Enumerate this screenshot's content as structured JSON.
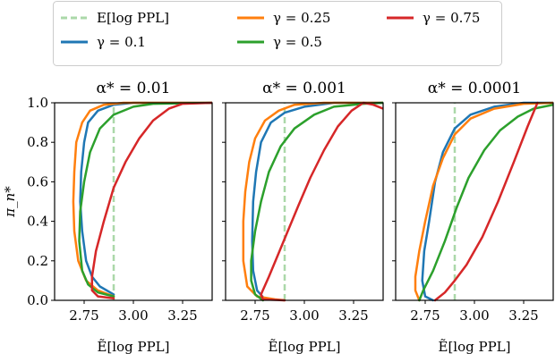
{
  "chart_data": {
    "type": "line",
    "legend": {
      "placement": "top",
      "entries": [
        {
          "key": "ref",
          "label": "E[log PPL]",
          "color": "#abd8a9",
          "dashed": true
        },
        {
          "key": "g025",
          "label": "γ = 0.25",
          "color": "#ff7f0e"
        },
        {
          "key": "g075",
          "label": "γ = 0.75",
          "color": "#d62728"
        },
        {
          "key": "g01",
          "label": "γ = 0.1",
          "color": "#1f77b4"
        },
        {
          "key": "g05",
          "label": "γ = 0.5",
          "color": "#2ca02c"
        }
      ]
    },
    "ylabel": "π_n*",
    "xlabel": "Ẽ[log PPL]",
    "xlim": [
      2.6,
      3.4
    ],
    "ylim": [
      0,
      1
    ],
    "xticks": [
      "2.75",
      "3.00",
      "3.25"
    ],
    "xtick_values": [
      2.75,
      3.0,
      3.25
    ],
    "yticks": [
      "0.0",
      "0.2",
      "0.4",
      "0.6",
      "0.8",
      "1.0"
    ],
    "ytick_values": [
      0,
      0.2,
      0.4,
      0.6,
      0.8,
      1.0
    ],
    "reference_x": 2.9,
    "panels": [
      {
        "title": "α* = 0.01",
        "series": {
          "g01": [
            [
              2.9,
              0.03
            ],
            [
              2.83,
              0.07
            ],
            [
              2.79,
              0.12
            ],
            [
              2.76,
              0.2
            ],
            [
              2.74,
              0.35
            ],
            [
              2.73,
              0.5
            ],
            [
              2.735,
              0.65
            ],
            [
              2.75,
              0.8
            ],
            [
              2.77,
              0.9
            ],
            [
              2.82,
              0.96
            ],
            [
              2.9,
              0.99
            ],
            [
              3.0,
              1.0
            ],
            [
              3.4,
              1.0
            ]
          ],
          "g025": [
            [
              2.9,
              0.02
            ],
            [
              2.82,
              0.05
            ],
            [
              2.76,
              0.1
            ],
            [
              2.72,
              0.2
            ],
            [
              2.7,
              0.35
            ],
            [
              2.695,
              0.5
            ],
            [
              2.7,
              0.65
            ],
            [
              2.71,
              0.8
            ],
            [
              2.74,
              0.9
            ],
            [
              2.78,
              0.96
            ],
            [
              2.85,
              0.99
            ],
            [
              2.95,
              1.0
            ],
            [
              3.4,
              1.0
            ]
          ],
          "g05": [
            [
              2.9,
              0.02
            ],
            [
              2.82,
              0.04
            ],
            [
              2.77,
              0.08
            ],
            [
              2.74,
              0.15
            ],
            [
              2.725,
              0.3
            ],
            [
              2.73,
              0.45
            ],
            [
              2.75,
              0.6
            ],
            [
              2.78,
              0.75
            ],
            [
              2.83,
              0.87
            ],
            [
              2.9,
              0.94
            ],
            [
              3.0,
              0.98
            ],
            [
              3.1,
              0.995
            ],
            [
              3.4,
              1.0
            ]
          ],
          "g075": [
            [
              2.9,
              0.01
            ],
            [
              2.82,
              0.02
            ],
            [
              2.79,
              0.05
            ],
            [
              2.79,
              0.12
            ],
            [
              2.81,
              0.25
            ],
            [
              2.85,
              0.4
            ],
            [
              2.9,
              0.57
            ],
            [
              2.96,
              0.7
            ],
            [
              3.03,
              0.82
            ],
            [
              3.1,
              0.91
            ],
            [
              3.18,
              0.97
            ],
            [
              3.25,
              0.995
            ],
            [
              3.4,
              1.0
            ]
          ]
        }
      },
      {
        "title": "α* = 0.001",
        "series": {
          "g01": [
            [
              2.8,
              0.005
            ],
            [
              2.76,
              0.05
            ],
            [
              2.74,
              0.15
            ],
            [
              2.735,
              0.3
            ],
            [
              2.74,
              0.5
            ],
            [
              2.755,
              0.65
            ],
            [
              2.78,
              0.8
            ],
            [
              2.83,
              0.9
            ],
            [
              2.9,
              0.95
            ],
            [
              3.0,
              0.98
            ],
            [
              3.15,
              1.0
            ],
            [
              3.4,
              1.0
            ]
          ],
          "g025": [
            [
              2.9,
              0.0
            ],
            [
              2.85,
              0.005
            ],
            [
              2.76,
              0.02
            ],
            [
              2.71,
              0.07
            ],
            [
              2.69,
              0.2
            ],
            [
              2.69,
              0.4
            ],
            [
              2.7,
              0.55
            ],
            [
              2.72,
              0.7
            ],
            [
              2.75,
              0.82
            ],
            [
              2.8,
              0.91
            ],
            [
              2.87,
              0.96
            ],
            [
              2.95,
              0.99
            ],
            [
              3.1,
              1.0
            ],
            [
              3.4,
              1.0
            ]
          ],
          "g05": [
            [
              2.79,
              0.0
            ],
            [
              2.75,
              0.03
            ],
            [
              2.73,
              0.1
            ],
            [
              2.73,
              0.2
            ],
            [
              2.75,
              0.35
            ],
            [
              2.78,
              0.5
            ],
            [
              2.82,
              0.65
            ],
            [
              2.88,
              0.78
            ],
            [
              2.95,
              0.87
            ],
            [
              3.05,
              0.94
            ],
            [
              3.15,
              0.98
            ],
            [
              3.3,
              0.995
            ],
            [
              3.4,
              1.0
            ]
          ],
          "g075": [
            [
              2.9,
              0.0
            ],
            [
              2.79,
              0.005
            ],
            [
              2.78,
              0.03
            ],
            [
              2.82,
              0.12
            ],
            [
              2.87,
              0.24
            ],
            [
              2.92,
              0.36
            ],
            [
              2.97,
              0.48
            ],
            [
              3.03,
              0.62
            ],
            [
              3.1,
              0.76
            ],
            [
              3.17,
              0.88
            ],
            [
              3.24,
              0.96
            ],
            [
              3.3,
              1.0
            ],
            [
              3.35,
              0.99
            ],
            [
              3.4,
              0.97
            ]
          ]
        }
      },
      {
        "title": "α* = 0.0001",
        "series": {
          "g01": [
            [
              2.79,
              0.0
            ],
            [
              2.75,
              0.02
            ],
            [
              2.735,
              0.1
            ],
            [
              2.745,
              0.25
            ],
            [
              2.77,
              0.4
            ],
            [
              2.8,
              0.6
            ],
            [
              2.84,
              0.75
            ],
            [
              2.9,
              0.87
            ],
            [
              2.98,
              0.94
            ],
            [
              3.1,
              0.98
            ],
            [
              3.25,
              1.0
            ],
            [
              3.4,
              1.0
            ]
          ],
          "g025": [
            [
              2.72,
              0.0
            ],
            [
              2.7,
              0.05
            ],
            [
              2.7,
              0.12
            ],
            [
              2.72,
              0.25
            ],
            [
              2.75,
              0.4
            ],
            [
              2.79,
              0.58
            ],
            [
              2.84,
              0.72
            ],
            [
              2.9,
              0.84
            ],
            [
              2.98,
              0.92
            ],
            [
              3.1,
              0.97
            ],
            [
              3.25,
              0.995
            ],
            [
              3.4,
              1.0
            ]
          ],
          "g05": [
            [
              2.72,
              0.0
            ],
            [
              2.74,
              0.05
            ],
            [
              2.79,
              0.15
            ],
            [
              2.85,
              0.3
            ],
            [
              2.91,
              0.47
            ],
            [
              2.97,
              0.62
            ],
            [
              3.05,
              0.76
            ],
            [
              3.13,
              0.86
            ],
            [
              3.22,
              0.93
            ],
            [
              3.3,
              0.97
            ],
            [
              3.4,
              0.99
            ]
          ],
          "g075": [
            [
              2.8,
              0.0
            ],
            [
              2.85,
              0.04
            ],
            [
              2.9,
              0.1
            ],
            [
              2.96,
              0.18
            ],
            [
              3.04,
              0.32
            ],
            [
              3.12,
              0.5
            ],
            [
              3.2,
              0.7
            ],
            [
              3.27,
              0.88
            ],
            [
              3.32,
              1.0
            ]
          ]
        }
      }
    ]
  }
}
